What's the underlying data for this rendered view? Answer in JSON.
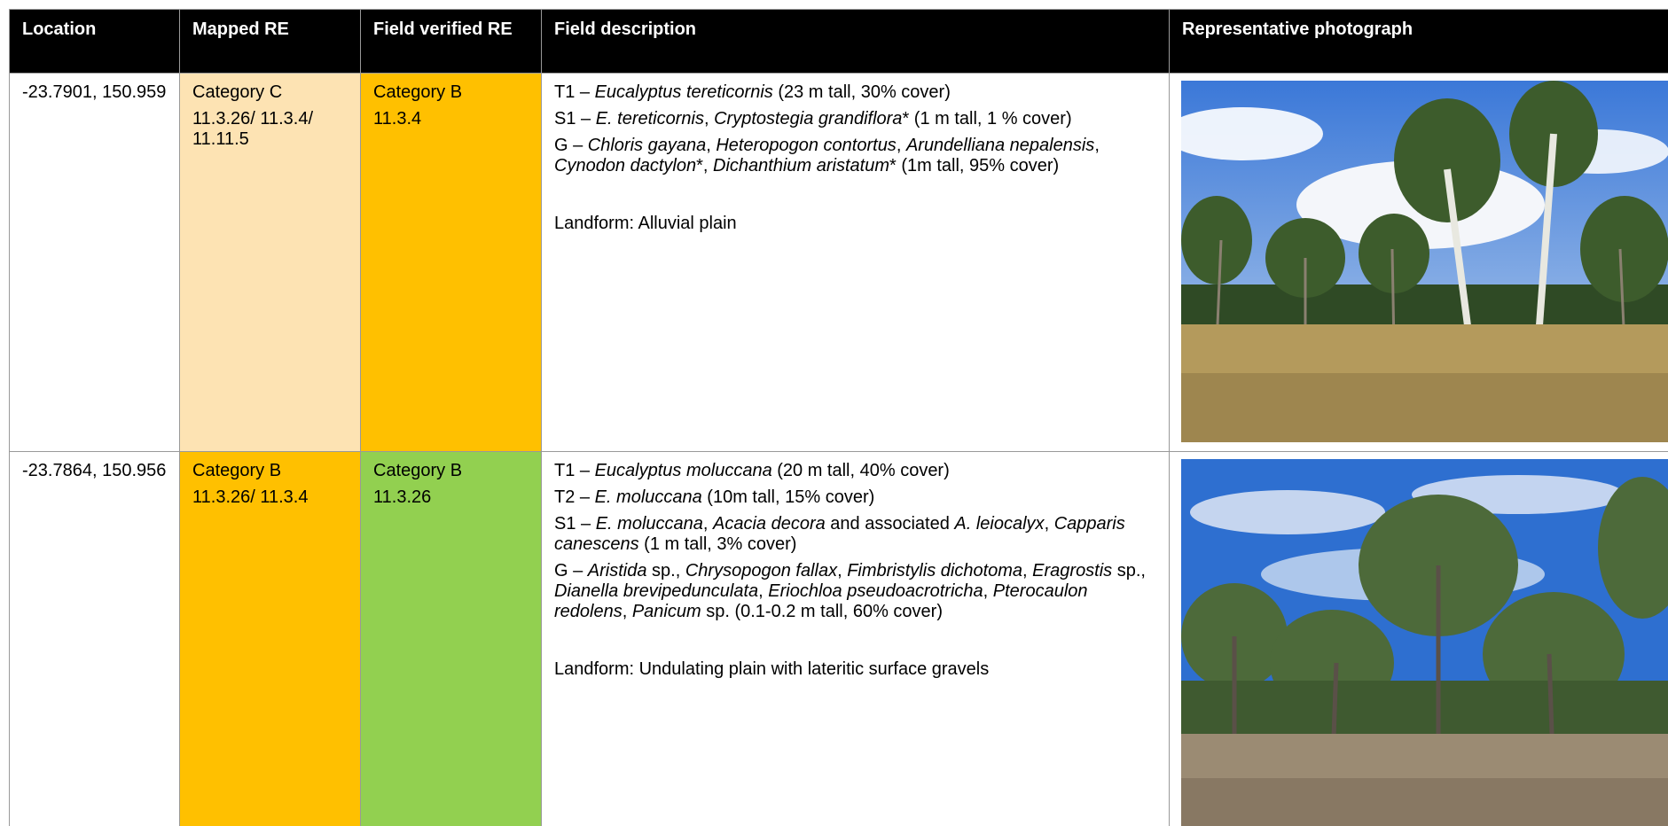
{
  "table": {
    "columns": [
      "Location",
      "Mapped RE",
      "Field verified RE",
      "Field description",
      "Representative photograph"
    ],
    "rows": [
      {
        "location": "-23.7901, 150.959",
        "mapped_re": {
          "category": "Category C",
          "re": "11.3.26/ 11.3.4/ 11.11.5",
          "color": "#fde3b3"
        },
        "field_verified_re": {
          "category": "Category B",
          "re": "11.3.4",
          "color": "#ffc000"
        },
        "description": [
          [
            "T1 – ",
            {
              "italic": "Eucalyptus tereticornis"
            },
            " (23 m tall, 30% cover)"
          ],
          [
            "S1 – ",
            {
              "italic": "E. tereticornis"
            },
            ", ",
            {
              "italic": "Cryptostegia grandiflora"
            },
            "* (1 m tall, 1 % cover)"
          ],
          [
            "G – ",
            {
              "italic": "Chloris gayana"
            },
            ", ",
            {
              "italic": "Heteropogon contortus"
            },
            ", ",
            {
              "italic": "Arundelliana nepalensis"
            },
            ", ",
            {
              "italic": "Cynodon dactylon"
            },
            "*, ",
            {
              "italic": "Dichanthium aristatum"
            },
            "* (1m tall, 95% cover)"
          ]
        ],
        "landform": "Landform: Alluvial plain"
      },
      {
        "location": "-23.7864, 150.956",
        "mapped_re": {
          "category": "Category B",
          "re": "11.3.26/ 11.3.4",
          "color": "#ffc000"
        },
        "field_verified_re": {
          "category": "Category B",
          "re": "11.3.26",
          "color": "#92d050"
        },
        "description": [
          [
            "T1 – ",
            {
              "italic": "Eucalyptus moluccana"
            },
            " (20 m tall, 40% cover)"
          ],
          [
            "T2 – ",
            {
              "italic": "E. moluccana"
            },
            " (10m tall, 15% cover)"
          ],
          [
            "S1 – ",
            {
              "italic": "E. moluccana"
            },
            ", ",
            {
              "italic": "Acacia decora"
            },
            " and associated ",
            {
              "italic": "A. leiocalyx"
            },
            ", ",
            {
              "italic": "Capparis canescens"
            },
            " (1 m tall, 3% cover)"
          ],
          [
            "G – ",
            {
              "italic": "Aristida"
            },
            " sp., ",
            {
              "italic": "Chrysopogon fallax"
            },
            ", ",
            {
              "italic": "Fimbristylis dichotoma"
            },
            ", ",
            {
              "italic": "Eragrostis"
            },
            " sp., ",
            {
              "italic": "Dianella brevipedunculata"
            },
            ", ",
            {
              "italic": "Eriochloa pseudoacrotricha"
            },
            ", ",
            {
              "italic": "Pterocaulon redolens"
            },
            ", ",
            {
              "italic": "Panicum"
            },
            " sp. (0.1-0.2 m tall, 60% cover)"
          ]
        ],
        "landform": "Landform: Undulating plain with lateritic surface gravels"
      }
    ]
  }
}
